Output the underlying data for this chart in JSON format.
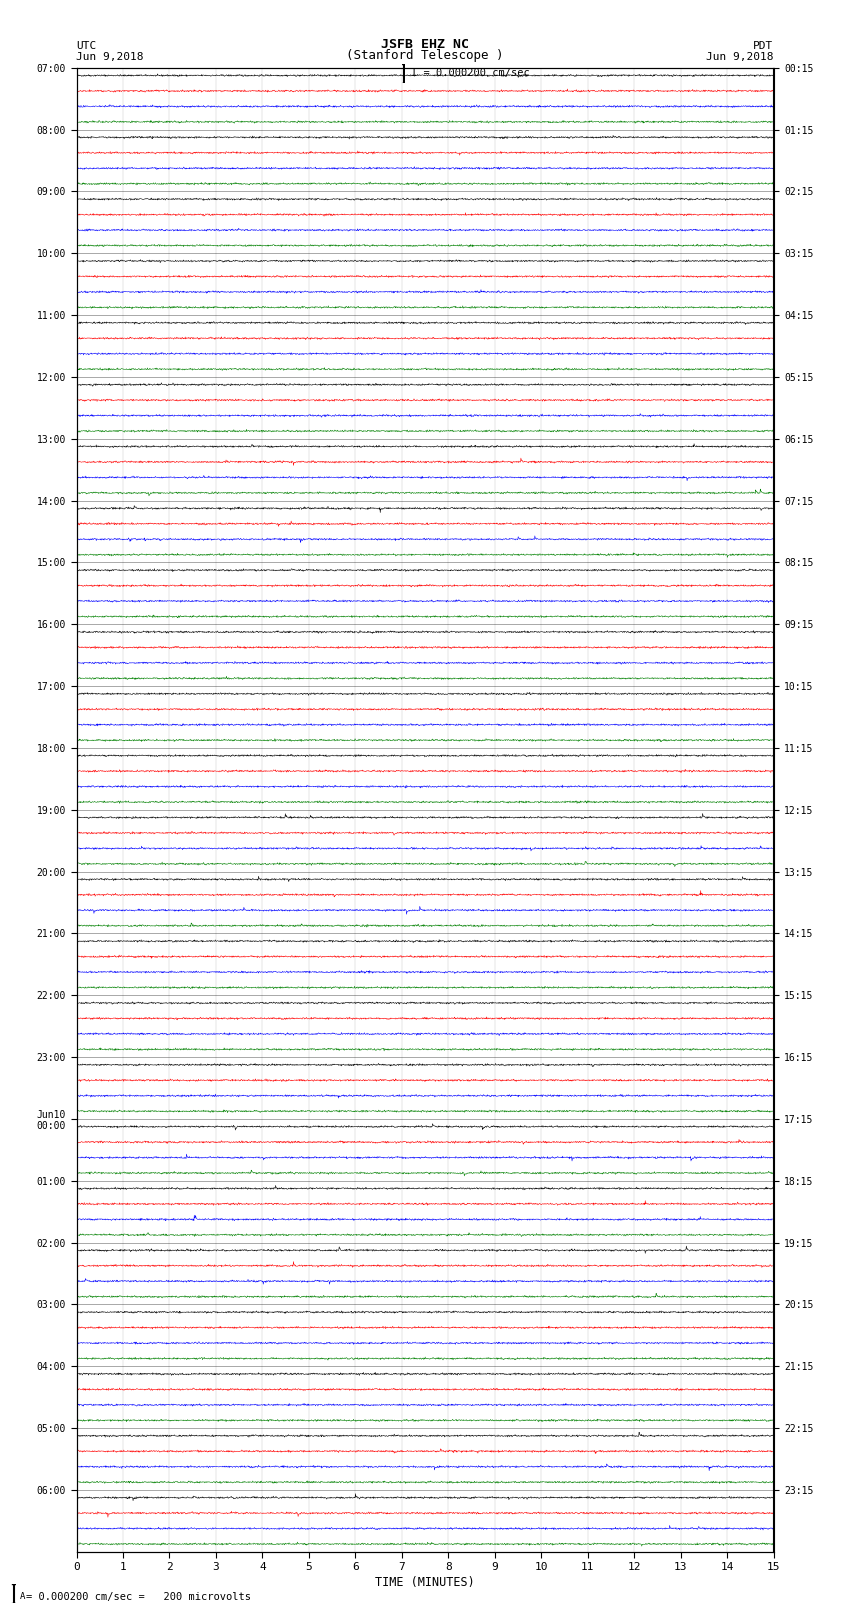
{
  "title_line1": "JSFB EHZ NC",
  "title_line2": "(Stanford Telescope )",
  "scale_text": "I = 0.000200 cm/sec",
  "footer_text": "= 0.000200 cm/sec =   200 microvolts",
  "utc_label": "UTC",
  "pdt_label": "PDT",
  "date_left": "Jun 9,2018",
  "date_right": "Jun 9,2018",
  "xlabel": "TIME (MINUTES)",
  "left_times": [
    "07:00",
    "08:00",
    "09:00",
    "10:00",
    "11:00",
    "12:00",
    "13:00",
    "14:00",
    "15:00",
    "16:00",
    "17:00",
    "18:00",
    "19:00",
    "20:00",
    "21:00",
    "22:00",
    "23:00",
    "Jun10\n00:00",
    "01:00",
    "02:00",
    "03:00",
    "04:00",
    "05:00",
    "06:00"
  ],
  "right_times": [
    "00:15",
    "01:15",
    "02:15",
    "03:15",
    "04:15",
    "05:15",
    "06:15",
    "07:15",
    "08:15",
    "09:15",
    "10:15",
    "11:15",
    "12:15",
    "13:15",
    "14:15",
    "15:15",
    "16:15",
    "17:15",
    "18:15",
    "19:15",
    "20:15",
    "21:15",
    "22:15",
    "23:15"
  ],
  "n_rows": 24,
  "traces_per_row": 4,
  "colors": [
    "black",
    "red",
    "blue",
    "green"
  ],
  "noise_amp": 0.028,
  "xmin": 0,
  "xmax": 15,
  "bg_color": "white"
}
